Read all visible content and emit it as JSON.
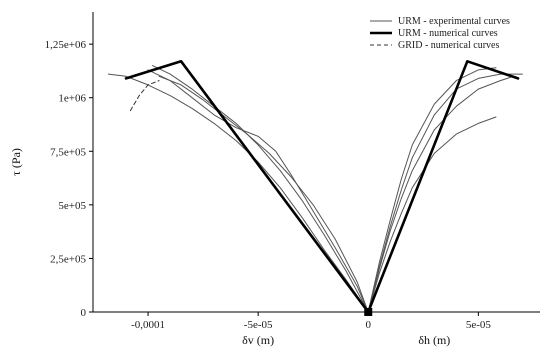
{
  "chart_data": {
    "type": "line",
    "title": "",
    "ylabel": "τ (Pa)",
    "xlabel_left": "δv (m)",
    "xlabel_right": "δh (m)",
    "ylim": [
      0,
      1400000
    ],
    "xlim": [
      -0.000125,
      7.8e-05
    ],
    "y_ticks": [
      {
        "value": 0,
        "label": "0"
      },
      {
        "value": 250000,
        "label": "2,5e+05"
      },
      {
        "value": 500000,
        "label": "5e+05"
      },
      {
        "value": 750000,
        "label": "7,5e+05"
      },
      {
        "value": 1000000,
        "label": "1e+06"
      },
      {
        "value": 1250000,
        "label": "1,25e+06"
      }
    ],
    "x_ticks": [
      {
        "value": -0.0001,
        "label": "-0,0001"
      },
      {
        "value": -5e-05,
        "label": "-5e-05"
      },
      {
        "value": 0,
        "label": "0"
      },
      {
        "value": 5e-05,
        "label": "5e-05"
      }
    ],
    "legend_position": "top-right",
    "series": [
      {
        "name": "URM - experimental curves",
        "style": "thin-solid",
        "color": "#555555",
        "lines": [
          [
            [
              -0.000118,
              1110000
            ],
            [
              -0.00011,
              1100000
            ],
            [
              -0.0001,
              1060000
            ],
            [
              -9e-05,
              1010000
            ],
            [
              -8e-05,
              950000
            ],
            [
              -7e-05,
              880000
            ],
            [
              -6e-05,
              800000
            ],
            [
              -5e-05,
              700000
            ],
            [
              -4e-05,
              580000
            ],
            [
              -3e-05,
              440000
            ],
            [
              -2e-05,
              290000
            ],
            [
              -1e-05,
              150000
            ],
            [
              0,
              0
            ]
          ],
          [
            [
              -0.0001,
              1130000
            ],
            [
              -9e-05,
              1080000
            ],
            [
              -8e-05,
              1000000
            ],
            [
              -7e-05,
              920000
            ],
            [
              -6e-05,
              860000
            ],
            [
              -5e-05,
              820000
            ],
            [
              -4.2e-05,
              750000
            ],
            [
              -3.5e-05,
              640000
            ],
            [
              -2.5e-05,
              470000
            ],
            [
              -1.5e-05,
              300000
            ],
            [
              -5e-06,
              120000
            ],
            [
              0,
              0
            ]
          ],
          [
            [
              -9.8e-05,
              1150000
            ],
            [
              -9e-05,
              1110000
            ],
            [
              -8e-05,
              1040000
            ],
            [
              -7e-05,
              960000
            ],
            [
              -6e-05,
              880000
            ],
            [
              -5e-05,
              780000
            ],
            [
              -4e-05,
              660000
            ],
            [
              -3e-05,
              520000
            ],
            [
              -2e-05,
              360000
            ],
            [
              -1e-05,
              190000
            ],
            [
              0,
              0
            ]
          ],
          [
            [
              -9.5e-05,
              1100000
            ],
            [
              -8.5e-05,
              1060000
            ],
            [
              -7.5e-05,
              990000
            ],
            [
              -6.5e-05,
              910000
            ],
            [
              -5.5e-05,
              830000
            ],
            [
              -4.5e-05,
              740000
            ],
            [
              -3.5e-05,
              630000
            ],
            [
              -2.5e-05,
              500000
            ],
            [
              -1.5e-05,
              340000
            ],
            [
              -5e-06,
              140000
            ],
            [
              0,
              0
            ]
          ],
          [
            [
              0,
              0
            ],
            [
              5e-06,
              180000
            ],
            [
              1e-05,
              330000
            ],
            [
              1.5e-05,
              460000
            ],
            [
              2e-05,
              580000
            ],
            [
              3e-05,
              740000
            ],
            [
              4e-05,
              830000
            ],
            [
              5e-05,
              880000
            ],
            [
              5.8e-05,
              910000
            ]
          ],
          [
            [
              0,
              0
            ],
            [
              5e-06,
              200000
            ],
            [
              1e-05,
              380000
            ],
            [
              1.5e-05,
              530000
            ],
            [
              2e-05,
              660000
            ],
            [
              3e-05,
              850000
            ],
            [
              4e-05,
              960000
            ],
            [
              5e-05,
              1040000
            ],
            [
              6e-05,
              1080000
            ],
            [
              6.6e-05,
              1100000
            ]
          ],
          [
            [
              0,
              0
            ],
            [
              5e-06,
              210000
            ],
            [
              1e-05,
              400000
            ],
            [
              1.5e-05,
              570000
            ],
            [
              2e-05,
              720000
            ],
            [
              3e-05,
              920000
            ],
            [
              4e-05,
              1040000
            ],
            [
              5e-05,
              1090000
            ],
            [
              6e-05,
              1110000
            ],
            [
              7e-05,
              1110000
            ]
          ],
          [
            [
              0,
              0
            ],
            [
              5e-06,
              230000
            ],
            [
              1e-05,
              430000
            ],
            [
              1.5e-05,
              620000
            ],
            [
              2e-05,
              780000
            ],
            [
              3e-05,
              970000
            ],
            [
              4e-05,
              1080000
            ],
            [
              5e-05,
              1130000
            ],
            [
              5.8e-05,
              1140000
            ]
          ]
        ]
      },
      {
        "name": "URM - numerical curves",
        "style": "thick-solid",
        "color": "#000000",
        "lines": [
          [
            [
              -0.00011,
              1090000
            ],
            [
              -8.5e-05,
              1170000
            ],
            [
              0,
              0
            ]
          ],
          [
            [
              0,
              0
            ],
            [
              4.5e-05,
              1170000
            ],
            [
              6.8e-05,
              1090000
            ]
          ]
        ]
      },
      {
        "name": "GRID - numerical curves",
        "style": "dashed",
        "color": "#333333",
        "lines": [
          [
            [
              -0.000108,
              940000
            ],
            [
              -0.000104,
              1010000
            ],
            [
              -0.0001,
              1060000
            ],
            [
              -9.5e-05,
              1080000
            ]
          ]
        ]
      }
    ],
    "origin_marker": true
  }
}
